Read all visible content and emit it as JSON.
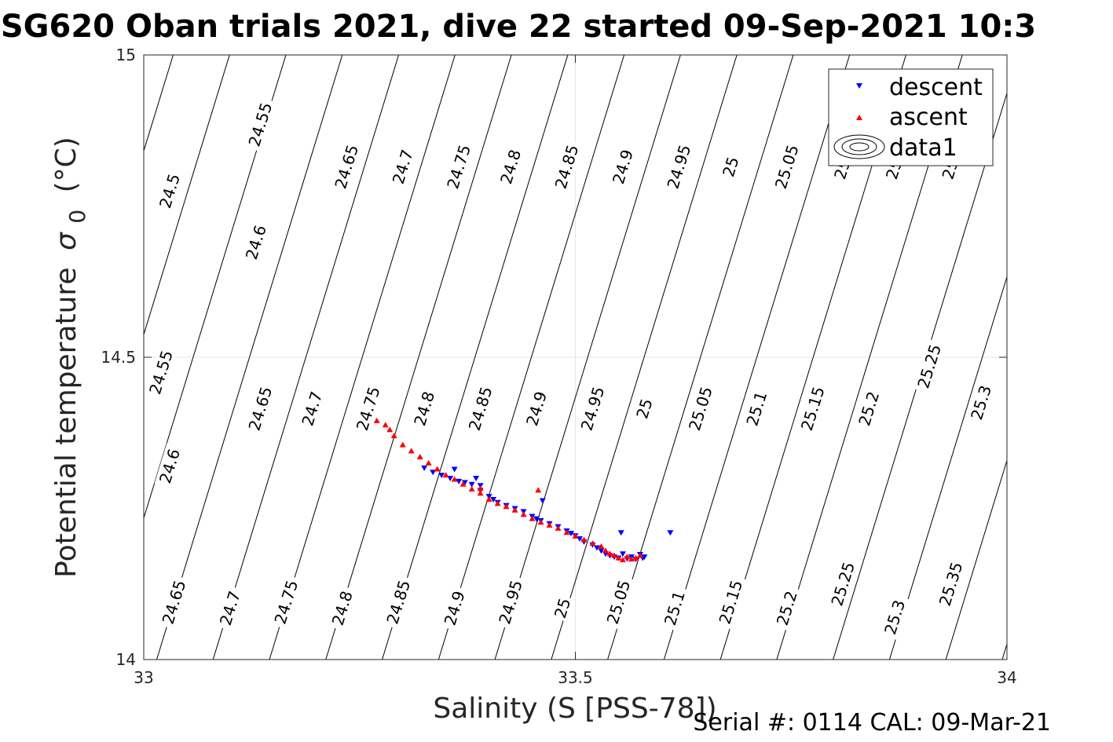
{
  "title": "SG620 Oban trials 2021, dive 22 started 09-Sep-2021 10:3",
  "footer": "Serial #: 0114  CAL: 09-Mar-21",
  "colors": {
    "descent": "#0000ff",
    "ascent": "#ff0000",
    "contour": "#000000",
    "grid": "#e6e6e6"
  },
  "chart_data": {
    "type": "scatter",
    "xlabel": "Salinity (S [PSS-78])",
    "ylabel": "Potential temperature",
    "ylabel_symbol": "σ",
    "ylabel_subscript": "0",
    "ylabel_unit": "(°C)",
    "xlim": [
      33,
      34
    ],
    "ylim": [
      14,
      15
    ],
    "x_ticks": [
      "33",
      "33.5",
      "34"
    ],
    "y_ticks": [
      "14",
      "14.5",
      "15"
    ],
    "grid": true,
    "legend_position": "top-right",
    "legend": [
      {
        "name": "descent",
        "marker": "triangle-down"
      },
      {
        "name": "ascent",
        "marker": "triangle-up"
      },
      {
        "name": "data1",
        "marker": "contour"
      }
    ],
    "contour_labels": [
      {
        "text": "24.5",
        "x": 33.03,
        "y": 14.775
      },
      {
        "text": "24.55",
        "x": 33.135,
        "y": 14.885
      },
      {
        "text": "24.65",
        "x": 33.235,
        "y": 14.815
      },
      {
        "text": "24.7",
        "x": 33.3,
        "y": 14.815
      },
      {
        "text": "24.75",
        "x": 33.365,
        "y": 14.815
      },
      {
        "text": "24.8",
        "x": 33.425,
        "y": 14.815
      },
      {
        "text": "24.85",
        "x": 33.49,
        "y": 14.815
      },
      {
        "text": "24.9",
        "x": 33.555,
        "y": 14.815
      },
      {
        "text": "24.95",
        "x": 33.62,
        "y": 14.815
      },
      {
        "text": "25",
        "x": 33.68,
        "y": 14.815
      },
      {
        "text": "25.05",
        "x": 33.745,
        "y": 14.815
      },
      {
        "text": "25.",
        "x": 33.81,
        "y": 14.815
      },
      {
        "text": "25.",
        "x": 33.87,
        "y": 14.815
      },
      {
        "text": "25.",
        "x": 33.935,
        "y": 14.815
      },
      {
        "text": "24.6",
        "x": 33.13,
        "y": 14.69
      },
      {
        "text": "24.55",
        "x": 33.02,
        "y": 14.475
      },
      {
        "text": "24.65",
        "x": 33.135,
        "y": 14.415
      },
      {
        "text": "24.7",
        "x": 33.195,
        "y": 14.415
      },
      {
        "text": "24.75",
        "x": 33.26,
        "y": 14.415
      },
      {
        "text": "24.8",
        "x": 33.325,
        "y": 14.415
      },
      {
        "text": "24.85",
        "x": 33.39,
        "y": 14.415
      },
      {
        "text": "24.9",
        "x": 33.455,
        "y": 14.415
      },
      {
        "text": "24.95",
        "x": 33.52,
        "y": 14.415
      },
      {
        "text": "25",
        "x": 33.58,
        "y": 14.415
      },
      {
        "text": "25.05",
        "x": 33.645,
        "y": 14.415
      },
      {
        "text": "25.1",
        "x": 33.71,
        "y": 14.415
      },
      {
        "text": "25.15",
        "x": 33.775,
        "y": 14.415
      },
      {
        "text": "25.2",
        "x": 33.84,
        "y": 14.415
      },
      {
        "text": "25.25",
        "x": 33.91,
        "y": 14.485
      },
      {
        "text": "25.3",
        "x": 33.97,
        "y": 14.425
      },
      {
        "text": "24.6",
        "x": 33.03,
        "y": 14.32
      },
      {
        "text": "24.65",
        "x": 33.035,
        "y": 14.095
      },
      {
        "text": "24.7",
        "x": 33.1,
        "y": 14.085
      },
      {
        "text": "24.75",
        "x": 33.165,
        "y": 14.095
      },
      {
        "text": "24.8",
        "x": 33.23,
        "y": 14.085
      },
      {
        "text": "24.85",
        "x": 33.295,
        "y": 14.095
      },
      {
        "text": "24.9",
        "x": 33.36,
        "y": 14.085
      },
      {
        "text": "24.95",
        "x": 33.425,
        "y": 14.095
      },
      {
        "text": "25",
        "x": 33.485,
        "y": 14.085
      },
      {
        "text": "25.05",
        "x": 33.55,
        "y": 14.095
      },
      {
        "text": "25.1",
        "x": 33.615,
        "y": 14.085
      },
      {
        "text": "25.15",
        "x": 33.68,
        "y": 14.095
      },
      {
        "text": "25.2",
        "x": 33.745,
        "y": 14.085
      },
      {
        "text": "25.25",
        "x": 33.81,
        "y": 14.125
      },
      {
        "text": "25.3",
        "x": 33.87,
        "y": 14.07
      },
      {
        "text": "25.35",
        "x": 33.935,
        "y": 14.125
      }
    ],
    "series": [
      {
        "name": "descent",
        "marker": "triangle-down",
        "x": [
          33.325,
          33.335,
          33.345,
          33.355,
          33.365,
          33.372,
          33.38,
          33.39,
          33.4,
          33.405,
          33.41,
          33.42,
          33.43,
          33.44,
          33.45,
          33.455,
          33.46,
          33.47,
          33.48,
          33.49,
          33.495,
          33.5,
          33.505,
          33.51,
          33.52,
          33.525,
          33.53,
          33.535,
          33.54,
          33.545,
          33.55,
          33.555,
          33.56,
          33.565,
          33.57,
          33.575,
          33.578,
          33.58,
          33.553,
          33.61,
          33.462,
          33.39,
          33.385,
          33.36
        ],
        "y": [
          14.317,
          14.31,
          14.305,
          14.3,
          14.295,
          14.293,
          14.29,
          14.28,
          14.27,
          14.265,
          14.26,
          14.255,
          14.25,
          14.245,
          14.237,
          14.233,
          14.23,
          14.225,
          14.22,
          14.213,
          14.209,
          14.205,
          14.2,
          14.195,
          14.19,
          14.185,
          14.18,
          14.175,
          14.172,
          14.17,
          14.168,
          14.175,
          14.167,
          14.17,
          14.166,
          14.174,
          14.168,
          14.17,
          14.21,
          14.21,
          14.263,
          14.288,
          14.3,
          14.315
        ]
      },
      {
        "name": "ascent",
        "marker": "triangle-up",
        "x": [
          33.27,
          33.28,
          33.285,
          33.29,
          33.3,
          33.31,
          33.32,
          33.33,
          33.34,
          33.35,
          33.36,
          33.37,
          33.38,
          33.39,
          33.4,
          33.41,
          33.42,
          33.43,
          33.44,
          33.45,
          33.46,
          33.47,
          33.48,
          33.49,
          33.5,
          33.51,
          33.52,
          33.53,
          33.535,
          33.54,
          33.545,
          33.55,
          33.555,
          33.56,
          33.565,
          33.57,
          33.575,
          33.457,
          33.39
        ],
        "y": [
          14.395,
          14.388,
          14.38,
          14.37,
          14.355,
          14.345,
          14.335,
          14.325,
          14.315,
          14.305,
          14.298,
          14.29,
          14.282,
          14.275,
          14.265,
          14.258,
          14.253,
          14.247,
          14.24,
          14.233,
          14.227,
          14.222,
          14.217,
          14.21,
          14.204,
          14.198,
          14.192,
          14.187,
          14.18,
          14.175,
          14.172,
          14.168,
          14.165,
          14.17,
          14.166,
          14.168,
          14.172,
          14.28,
          14.283
        ]
      }
    ]
  }
}
